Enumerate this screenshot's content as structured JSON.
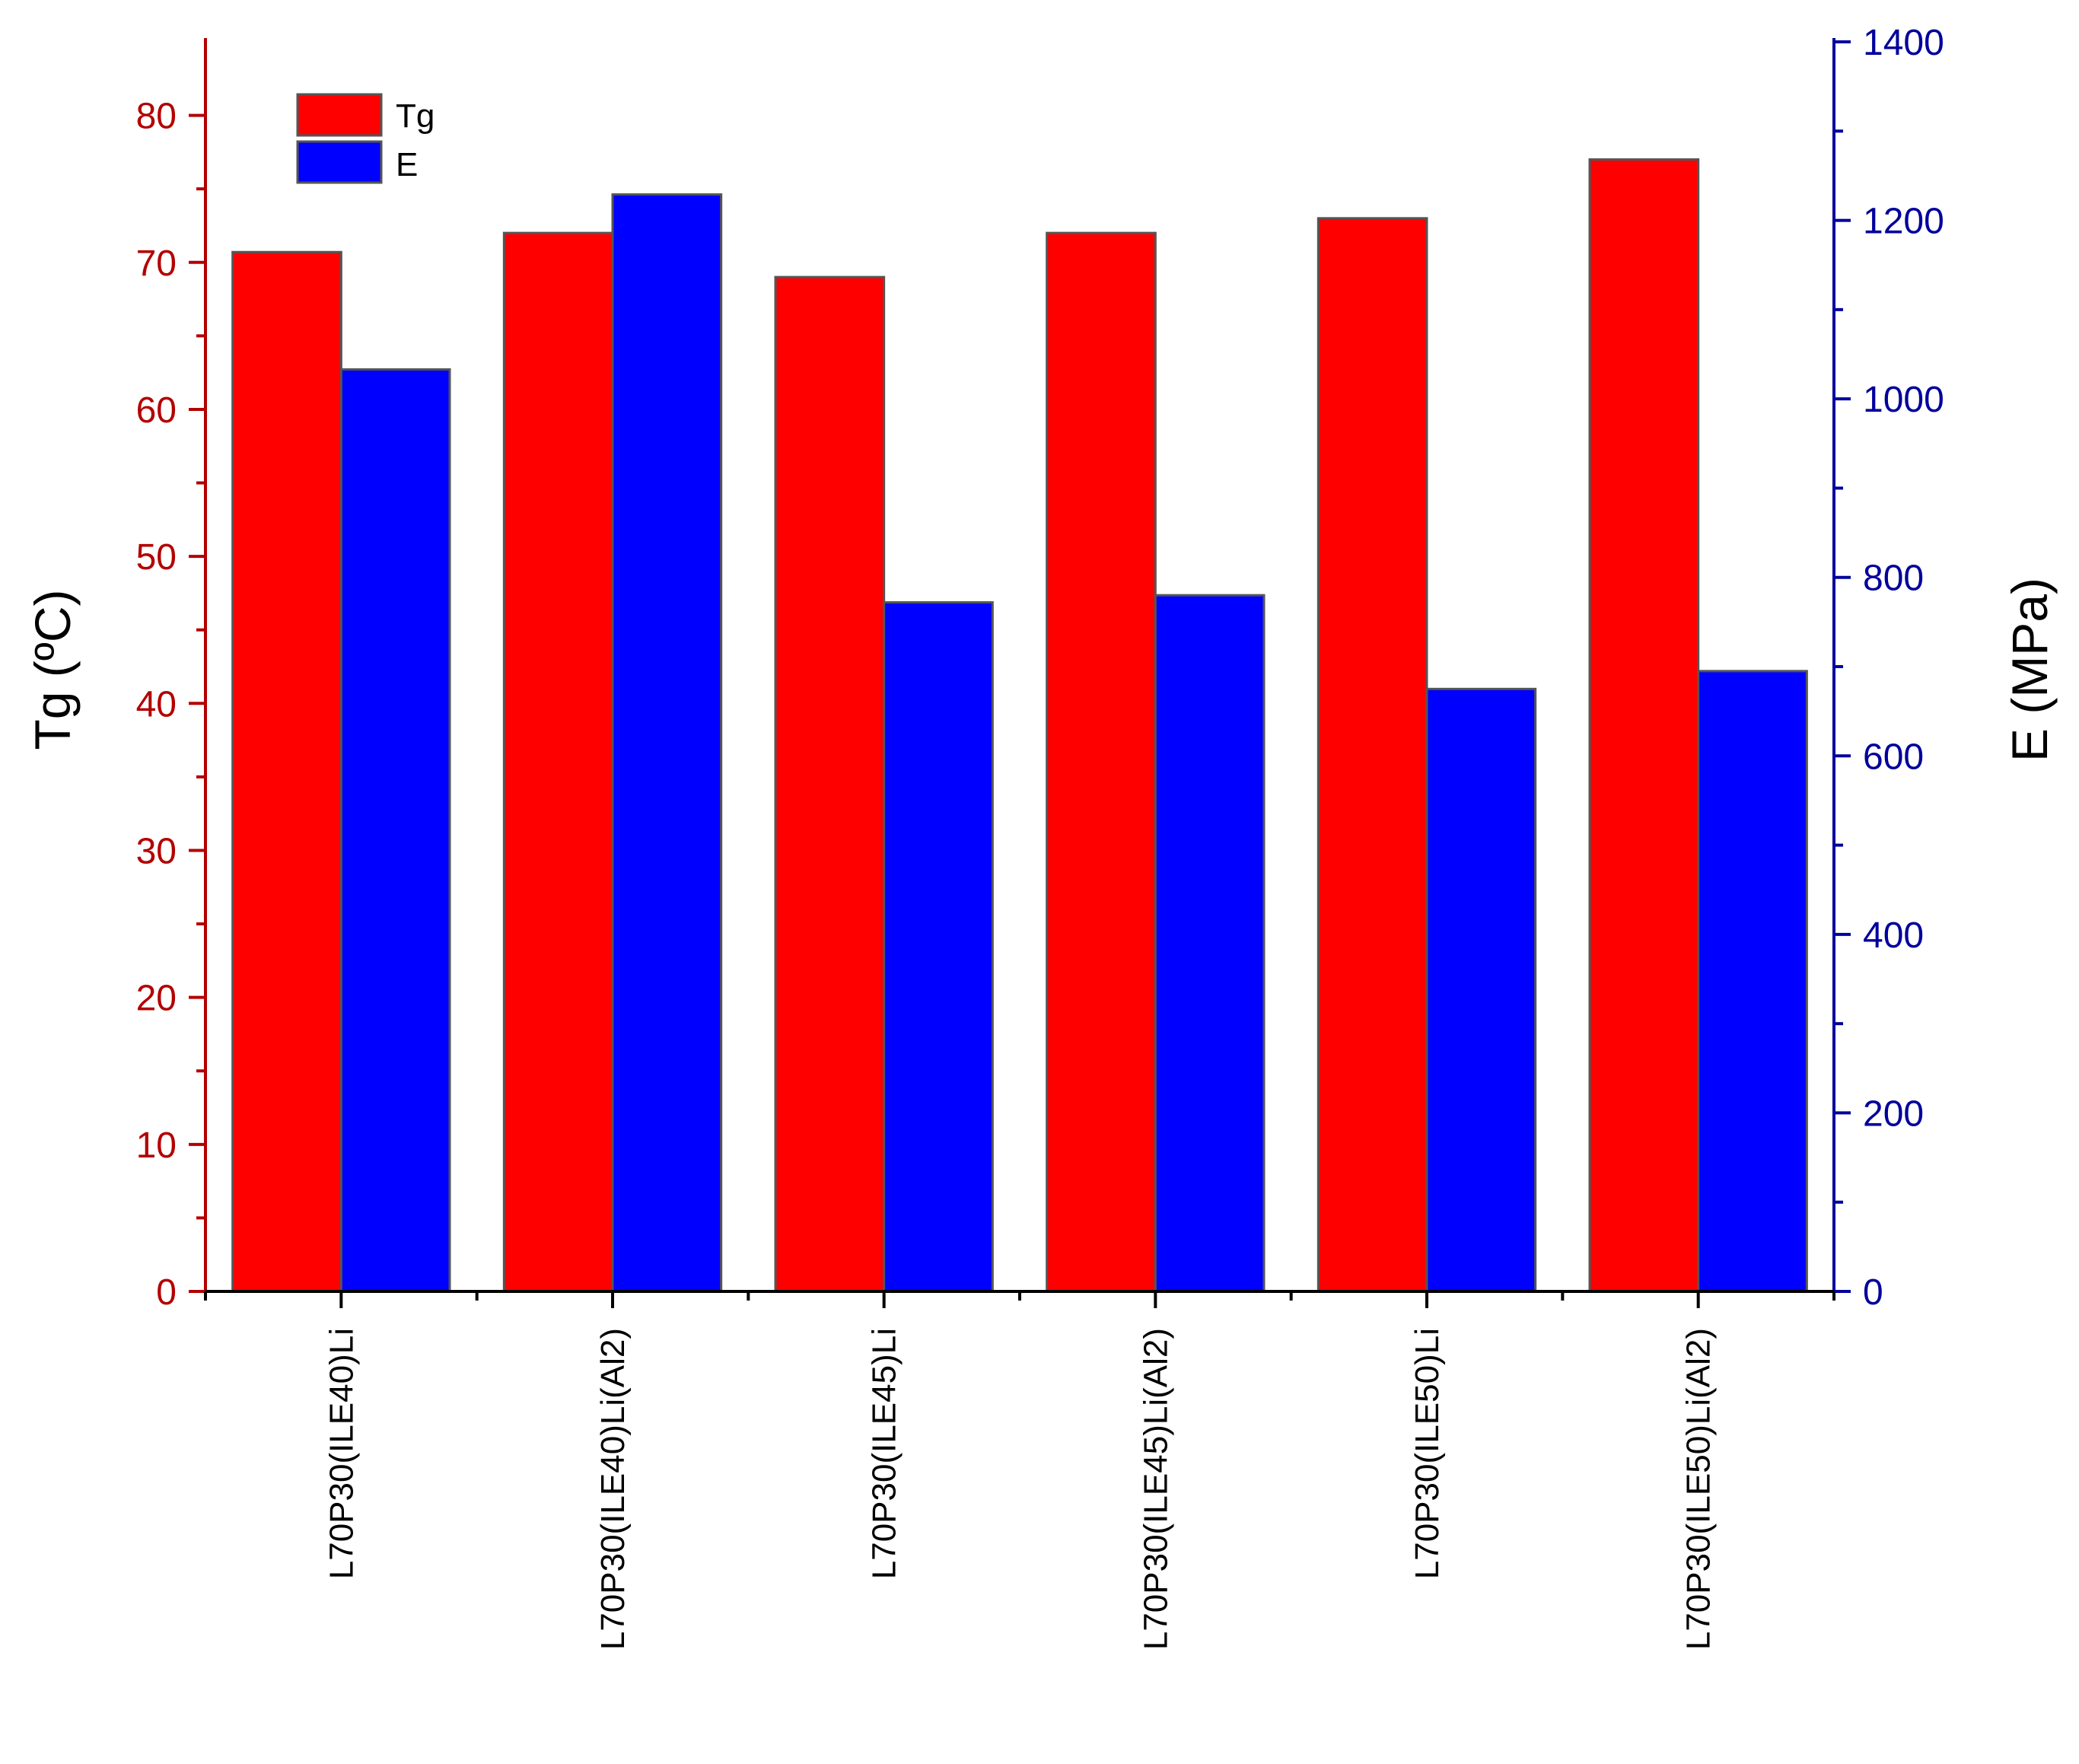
{
  "colors": {
    "tg_bar": "#ff0000",
    "e_bar": "#0000ff",
    "left_axis": "#b30000",
    "right_axis": "#00009c",
    "bar_edge": "#555555"
  },
  "chart_data": {
    "type": "bar",
    "title": "",
    "categories": [
      "L70P30(ILE40)Li",
      "L70P30(ILE40)Li(Al2)",
      "L70P30(ILE45)Li",
      "L70P30(ILE45)Li(Al2)",
      "L70P30(ILE50)Li",
      "L70P30(ILE50)Li(Al2)"
    ],
    "series": [
      {
        "name": "Tg",
        "axis": "left",
        "color": "#ff0000",
        "values": [
          70.7,
          72.0,
          69.0,
          72.0,
          73.0,
          77.0
        ]
      },
      {
        "name": "E",
        "axis": "right",
        "color": "#0000ff",
        "values": [
          1033,
          1229,
          772,
          780,
          675,
          695
        ]
      }
    ],
    "ylabel_left": "Tg (ºC)",
    "ylabel_right": "E (MPa)",
    "ylim_left": [
      0,
      85
    ],
    "ylim_right": [
      0,
      1400
    ],
    "yticks_left": [
      "0",
      "10",
      "20",
      "30",
      "40",
      "50",
      "60",
      "70",
      "80"
    ],
    "yticks_right": [
      "0",
      "200",
      "400",
      "600",
      "800",
      "1000",
      "1200",
      "1400"
    ],
    "legend": {
      "placement": "top-left",
      "entries": [
        "Tg",
        "E"
      ]
    },
    "grid": false
  }
}
